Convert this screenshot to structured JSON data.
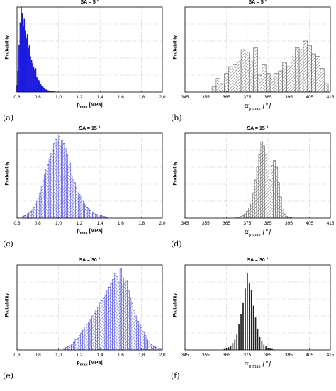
{
  "chart_data": [
    {
      "id": "a",
      "type": "bar",
      "caption": "(a)",
      "title": "SA = 5 °",
      "ylabel": "Probability",
      "xlabel_main": "p",
      "xlabel_sub": "max",
      "xlabel_unit": "[MPa]",
      "xlabel_greek": false,
      "xlim": [
        0.6,
        2.0
      ],
      "xticks": [
        "0,6",
        "0,8",
        "1,0",
        "1,2",
        "1,4",
        "1,6",
        "1,8",
        "2,0"
      ],
      "ylim": [
        0,
        1
      ],
      "grid": true,
      "color": "#1a1adf",
      "hatch": false,
      "bar_width": 0.01,
      "x": [
        0.6,
        0.61,
        0.62,
        0.63,
        0.64,
        0.65,
        0.66,
        0.67,
        0.68,
        0.69,
        0.7,
        0.71,
        0.72,
        0.73,
        0.74,
        0.75,
        0.76,
        0.77,
        0.78,
        0.79,
        0.8,
        0.81,
        0.82,
        0.83,
        0.84,
        0.85,
        0.86,
        0.87,
        0.88,
        0.89,
        0.9,
        0.91,
        0.92,
        0.93,
        0.94,
        0.95,
        0.96,
        0.97,
        0.98,
        0.99
      ],
      "values": [
        0.08,
        0.25,
        0.55,
        0.82,
        1.0,
        0.93,
        0.78,
        0.86,
        0.72,
        0.63,
        0.68,
        0.52,
        0.55,
        0.42,
        0.38,
        0.34,
        0.3,
        0.26,
        0.28,
        0.18,
        0.16,
        0.14,
        0.12,
        0.09,
        0.07,
        0.06,
        0.05,
        0.04,
        0.03,
        0.025,
        0.02,
        0.015,
        0.012,
        0.01,
        0.008,
        0.006,
        0.005,
        0.004,
        0.003,
        0.002
      ]
    },
    {
      "id": "b",
      "type": "bar",
      "caption": "(b)",
      "title": "SA = 5 °",
      "ylabel": "Probability",
      "xlabel_main": "α",
      "xlabel_sub": "p max",
      "xlabel_unit": "[°]",
      "xlabel_greek": true,
      "xlim": [
        345,
        415
      ],
      "xticks": [
        "345",
        "355",
        "365",
        "375",
        "385",
        "395",
        "405",
        "415"
      ],
      "ylim": [
        0,
        1
      ],
      "grid": true,
      "color": "#444444",
      "hatch": true,
      "bar_width": 2,
      "x": [
        359,
        361,
        363,
        365,
        367,
        369,
        371,
        373,
        375,
        377,
        379,
        381,
        383,
        385,
        387,
        389,
        391,
        393,
        395,
        397,
        399,
        401,
        403,
        405,
        407,
        409,
        411,
        413
      ],
      "values": [
        0.06,
        0.16,
        0.1,
        0.22,
        0.3,
        0.32,
        0.38,
        0.5,
        0.47,
        0.38,
        0.52,
        0.2,
        0.32,
        0.22,
        0.18,
        0.22,
        0.25,
        0.35,
        0.3,
        0.44,
        0.52,
        0.5,
        0.6,
        0.55,
        0.45,
        0.42,
        0.28,
        0.1
      ]
    },
    {
      "id": "c",
      "type": "bar",
      "caption": "(c)",
      "title": "SA = 15 °",
      "ylabel": "Probability",
      "xlabel_main": "p",
      "xlabel_sub": "max",
      "xlabel_unit": "[MPa]",
      "xlabel_greek": false,
      "xlim": [
        0.6,
        2.0
      ],
      "xticks": [
        "0,6",
        "0,8",
        "1,0",
        "1,2",
        "1,4",
        "1,6",
        "1,8",
        "2,0"
      ],
      "ylim": [
        0,
        1
      ],
      "grid": true,
      "color": "#2a2ae0",
      "hatch": true,
      "bar_width": 0.015,
      "x": [
        0.66,
        0.675,
        0.69,
        0.705,
        0.72,
        0.735,
        0.75,
        0.765,
        0.78,
        0.795,
        0.81,
        0.825,
        0.84,
        0.855,
        0.87,
        0.885,
        0.9,
        0.915,
        0.93,
        0.945,
        0.96,
        0.975,
        0.99,
        1.005,
        1.02,
        1.035,
        1.05,
        1.065,
        1.08,
        1.095,
        1.11,
        1.125,
        1.14,
        1.155,
        1.17,
        1.185,
        1.2,
        1.215,
        1.23,
        1.245,
        1.26,
        1.275,
        1.29,
        1.305,
        1.32,
        1.335,
        1.35,
        1.365,
        1.38,
        1.395,
        1.41,
        1.425,
        1.44,
        1.455,
        1.47
      ],
      "values": [
        0.02,
        0.03,
        0.04,
        0.05,
        0.06,
        0.08,
        0.1,
        0.13,
        0.16,
        0.2,
        0.26,
        0.3,
        0.38,
        0.45,
        0.52,
        0.58,
        0.63,
        0.7,
        0.76,
        0.8,
        0.88,
        0.93,
        0.9,
        0.98,
        0.85,
        0.92,
        0.88,
        0.82,
        0.75,
        0.6,
        0.66,
        0.5,
        0.45,
        0.42,
        0.36,
        0.3,
        0.28,
        0.25,
        0.2,
        0.18,
        0.15,
        0.13,
        0.11,
        0.09,
        0.07,
        0.06,
        0.05,
        0.045,
        0.04,
        0.035,
        0.03,
        0.025,
        0.02,
        0.015,
        0.01
      ]
    },
    {
      "id": "d",
      "type": "bar",
      "caption": "(d)",
      "title": "SA = 15 °",
      "ylabel": "Probability",
      "xlabel_main": "α",
      "xlabel_sub": "p max",
      "xlabel_unit": "[°]",
      "xlabel_greek": true,
      "xlim": [
        345,
        415
      ],
      "xticks": [
        "345",
        "355",
        "365",
        "375",
        "385",
        "395",
        "405",
        "415"
      ],
      "ylim": [
        0,
        1
      ],
      "grid": true,
      "color": "#444444",
      "hatch": true,
      "bar_width": 1,
      "x": [
        370,
        371,
        372,
        373,
        374,
        375,
        376,
        377,
        378,
        379,
        380,
        381,
        382,
        383,
        384,
        385,
        386,
        387,
        388,
        389,
        390,
        391,
        392,
        393,
        394,
        395,
        396
      ],
      "values": [
        0.01,
        0.01,
        0.02,
        0.03,
        0.05,
        0.08,
        0.12,
        0.18,
        0.3,
        0.45,
        0.6,
        0.75,
        0.9,
        0.85,
        0.75,
        0.55,
        0.45,
        0.62,
        0.68,
        0.6,
        0.42,
        0.25,
        0.12,
        0.05,
        0.02,
        0.01,
        0.005
      ]
    },
    {
      "id": "e",
      "type": "bar",
      "caption": "(e)",
      "title": "SA = 30 °",
      "ylabel": "Probability",
      "xlabel_main": "p",
      "xlabel_sub": "max",
      "xlabel_unit": "[MPa]",
      "xlabel_greek": false,
      "xlim": [
        0.6,
        2.0
      ],
      "xticks": [
        "0,6",
        "0,8",
        "1,0",
        "1,2",
        "1,4",
        "1,6",
        "1,8",
        "2,0"
      ],
      "ylim": [
        0,
        1
      ],
      "grid": true,
      "color": "#2a2ae0",
      "hatch": true,
      "bar_width": 0.018,
      "x": [
        1.06,
        1.078,
        1.096,
        1.114,
        1.132,
        1.15,
        1.168,
        1.186,
        1.204,
        1.222,
        1.24,
        1.258,
        1.276,
        1.294,
        1.312,
        1.33,
        1.348,
        1.366,
        1.384,
        1.402,
        1.42,
        1.438,
        1.456,
        1.474,
        1.492,
        1.51,
        1.528,
        1.546,
        1.564,
        1.582,
        1.6,
        1.618,
        1.636,
        1.654,
        1.672,
        1.69,
        1.708,
        1.726,
        1.744,
        1.762,
        1.78,
        1.798,
        1.816,
        1.834,
        1.852,
        1.87,
        1.888,
        1.906,
        1.924,
        1.942,
        1.96,
        1.978
      ],
      "values": [
        0.02,
        0.03,
        0.04,
        0.05,
        0.07,
        0.09,
        0.12,
        0.14,
        0.17,
        0.2,
        0.23,
        0.27,
        0.3,
        0.33,
        0.36,
        0.4,
        0.43,
        0.47,
        0.5,
        0.55,
        0.58,
        0.62,
        0.65,
        0.7,
        0.74,
        0.78,
        0.83,
        0.9,
        0.86,
        0.8,
        0.96,
        0.85,
        0.79,
        0.82,
        0.7,
        0.62,
        0.55,
        0.47,
        0.4,
        0.34,
        0.3,
        0.26,
        0.21,
        0.17,
        0.13,
        0.1,
        0.07,
        0.05,
        0.04,
        0.03,
        0.02,
        0.01
      ]
    },
    {
      "id": "f",
      "type": "bar",
      "caption": "(f)",
      "title": "SA = 30 °",
      "ylabel": "Probability",
      "xlabel_main": "α",
      "xlabel_sub": "p max",
      "xlabel_unit": "[°]",
      "xlabel_greek": true,
      "xlim": [
        345,
        415
      ],
      "xticks": [
        "345",
        "355",
        "365",
        "375",
        "385",
        "395",
        "405",
        "415"
      ],
      "ylim": [
        0,
        1
      ],
      "grid": true,
      "color": "#222222",
      "hatch": false,
      "bar_width": 0.5,
      "x": [
        364,
        365,
        366,
        367,
        368,
        369,
        370,
        371,
        372,
        373,
        374,
        375,
        376,
        377,
        378,
        379,
        380,
        381,
        382,
        383,
        384,
        385,
        386,
        387,
        388
      ],
      "values": [
        0.01,
        0.02,
        0.03,
        0.05,
        0.08,
        0.12,
        0.18,
        0.3,
        0.42,
        0.55,
        0.72,
        0.9,
        0.78,
        0.7,
        0.52,
        0.38,
        0.25,
        0.15,
        0.1,
        0.06,
        0.04,
        0.02,
        0.015,
        0.01,
        0.005
      ]
    }
  ]
}
